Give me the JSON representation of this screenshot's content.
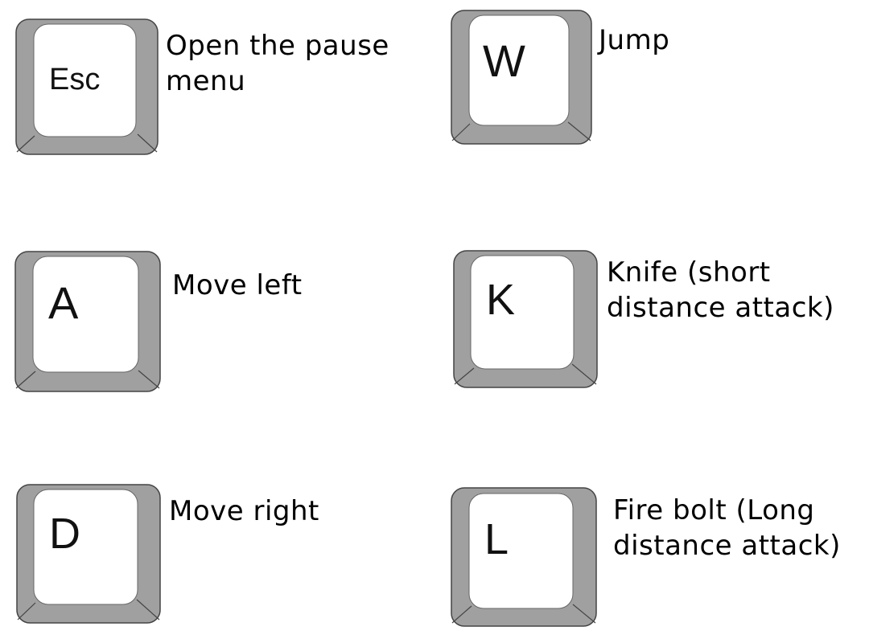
{
  "colors": {
    "key_body": "#a0a0a0",
    "key_face": "#ffffff",
    "key_outline": "#444444",
    "text": "#000000"
  },
  "bindings": [
    {
      "key": "Esc",
      "action_lines": [
        "Open the pause",
        "menu"
      ]
    },
    {
      "key": "W",
      "action_lines": [
        "Jump"
      ]
    },
    {
      "key": "A",
      "action_lines": [
        "Move left"
      ]
    },
    {
      "key": "K",
      "action_lines": [
        "Knife (short",
        "distance attack)"
      ]
    },
    {
      "key": "D",
      "action_lines": [
        "Move right"
      ]
    },
    {
      "key": "L",
      "action_lines": [
        "Fire bolt (Long",
        "distance attack)"
      ]
    }
  ]
}
